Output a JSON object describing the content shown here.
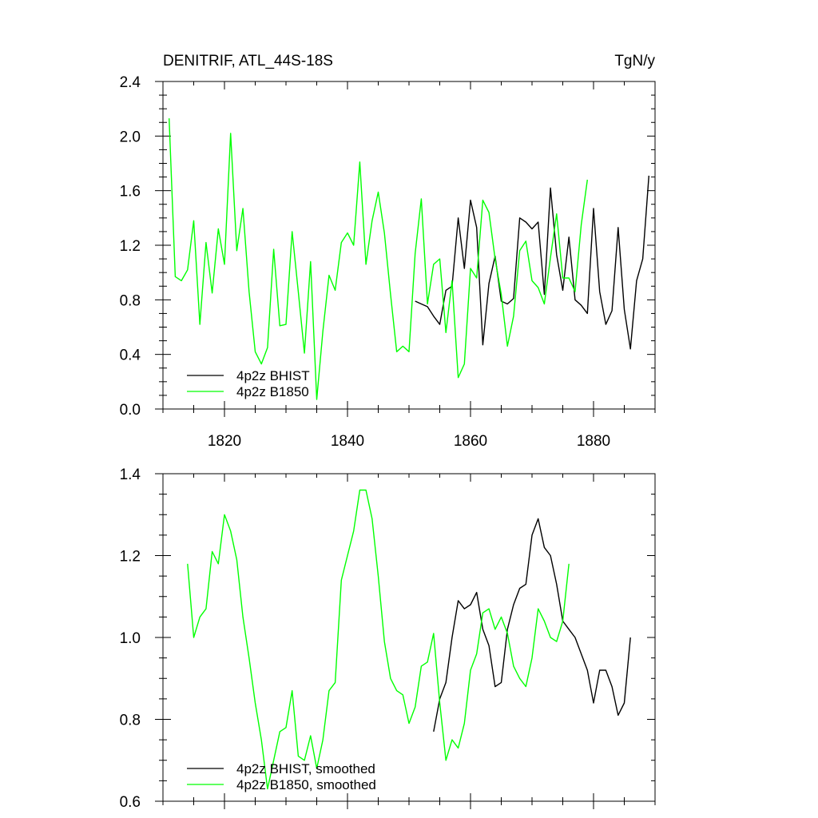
{
  "chart_data": [
    {
      "type": "line",
      "title": "DENITRIF, ATL_44S-18S",
      "units": "TgN/y",
      "xlim": [
        1810,
        1890
      ],
      "ylim": [
        0.0,
        2.4
      ],
      "xticks": [
        1820,
        1840,
        1860,
        1880
      ],
      "yticks": [
        0.0,
        0.4,
        0.8,
        1.2,
        1.6,
        2.0,
        2.4
      ],
      "ytick_labels": [
        "0.0",
        "0.4",
        "0.8",
        "1.2",
        "1.6",
        "2.0",
        "2.4"
      ],
      "legend_position": "bottom-left",
      "series": [
        {
          "name": "4p2z BHIST",
          "color": "#000000",
          "x": [
            1851,
            1852,
            1853,
            1854,
            1855,
            1856,
            1857,
            1858,
            1859,
            1860,
            1861,
            1862,
            1863,
            1864,
            1865,
            1866,
            1867,
            1868,
            1869,
            1870,
            1871,
            1872,
            1873,
            1874,
            1875,
            1876,
            1877,
            1878,
            1879,
            1880,
            1881,
            1882,
            1883,
            1884,
            1885,
            1886,
            1887,
            1888,
            1889
          ],
          "values": [
            0.79,
            0.77,
            0.75,
            0.68,
            0.62,
            0.87,
            0.9,
            1.4,
            1.03,
            1.53,
            1.33,
            0.47,
            0.92,
            1.12,
            0.79,
            0.77,
            0.81,
            1.4,
            1.37,
            1.32,
            1.37,
            0.84,
            1.62,
            1.13,
            0.87,
            1.26,
            0.8,
            0.76,
            0.7,
            1.47,
            0.86,
            0.62,
            0.72,
            1.33,
            0.73,
            0.44,
            0.94,
            1.1,
            1.71
          ]
        },
        {
          "name": "4p2z B1850",
          "color": "#00ff00",
          "x": [
            1811,
            1812,
            1813,
            1814,
            1815,
            1816,
            1817,
            1818,
            1819,
            1820,
            1821,
            1822,
            1823,
            1824,
            1825,
            1826,
            1827,
            1828,
            1829,
            1830,
            1831,
            1832,
            1833,
            1834,
            1835,
            1836,
            1837,
            1838,
            1839,
            1840,
            1841,
            1842,
            1843,
            1844,
            1845,
            1846,
            1847,
            1848,
            1849,
            1850,
            1851,
            1852,
            1853,
            1854,
            1855,
            1856,
            1857,
            1858,
            1859,
            1860,
            1861,
            1862,
            1863,
            1864,
            1865,
            1866,
            1867,
            1868,
            1869,
            1870,
            1871,
            1872,
            1873,
            1874,
            1875,
            1876,
            1877,
            1878,
            1879
          ],
          "values": [
            2.13,
            0.97,
            0.94,
            1.02,
            1.38,
            0.62,
            1.22,
            0.85,
            1.32,
            1.06,
            2.02,
            1.16,
            1.47,
            0.86,
            0.42,
            0.33,
            0.45,
            1.17,
            0.61,
            0.62,
            1.3,
            0.86,
            0.41,
            1.08,
            0.07,
            0.57,
            0.98,
            0.87,
            1.22,
            1.29,
            1.2,
            1.81,
            1.06,
            1.38,
            1.59,
            1.29,
            0.84,
            0.42,
            0.46,
            0.42,
            1.14,
            1.54,
            0.77,
            1.06,
            1.1,
            0.56,
            0.94,
            0.23,
            0.33,
            1.03,
            0.96,
            1.53,
            1.44,
            1.1,
            0.84,
            0.46,
            0.68,
            1.16,
            1.23,
            0.94,
            0.89,
            0.77,
            1.11,
            1.43,
            0.96,
            0.96,
            0.86,
            1.35,
            1.68
          ]
        }
      ]
    },
    {
      "type": "line",
      "title": "",
      "xlim": [
        1810,
        1890
      ],
      "ylim": [
        0.6,
        1.4
      ],
      "xticks": [
        1820,
        1840,
        1860,
        1880
      ],
      "yticks": [
        0.6,
        0.8,
        1.0,
        1.2,
        1.4
      ],
      "ytick_labels": [
        "0.6",
        "0.8",
        "1.0",
        "1.2",
        "1.4"
      ],
      "legend_position": "bottom-left",
      "series": [
        {
          "name": "4p2z BHIST, smoothed",
          "color": "#000000",
          "x": [
            1854,
            1855,
            1856,
            1857,
            1858,
            1859,
            1860,
            1861,
            1862,
            1863,
            1864,
            1865,
            1866,
            1867,
            1868,
            1869,
            1870,
            1871,
            1872,
            1873,
            1874,
            1875,
            1876,
            1877,
            1878,
            1879,
            1880,
            1881,
            1882,
            1883,
            1884,
            1885,
            1886
          ],
          "values": [
            0.77,
            0.85,
            0.89,
            1.0,
            1.09,
            1.07,
            1.08,
            1.11,
            1.02,
            0.98,
            0.88,
            0.89,
            1.02,
            1.08,
            1.12,
            1.13,
            1.25,
            1.29,
            1.22,
            1.2,
            1.13,
            1.04,
            1.02,
            1.0,
            0.96,
            0.92,
            0.84,
            0.92,
            0.92,
            0.88,
            0.81,
            0.84,
            1.0
          ]
        },
        {
          "name": "4p2z B1850, smoothed",
          "color": "#00ff00",
          "x": [
            1814,
            1815,
            1816,
            1817,
            1818,
            1819,
            1820,
            1821,
            1822,
            1823,
            1824,
            1825,
            1826,
            1827,
            1828,
            1829,
            1830,
            1831,
            1832,
            1833,
            1834,
            1835,
            1836,
            1837,
            1838,
            1839,
            1840,
            1841,
            1842,
            1843,
            1844,
            1845,
            1846,
            1847,
            1848,
            1849,
            1850,
            1851,
            1852,
            1853,
            1854,
            1855,
            1856,
            1857,
            1858,
            1859,
            1860,
            1861,
            1862,
            1863,
            1864,
            1865,
            1866,
            1867,
            1868,
            1869,
            1870,
            1871,
            1872,
            1873,
            1874,
            1875,
            1876
          ],
          "values": [
            1.18,
            1.0,
            1.05,
            1.07,
            1.21,
            1.18,
            1.3,
            1.26,
            1.19,
            1.05,
            0.95,
            0.84,
            0.75,
            0.63,
            0.7,
            0.77,
            0.78,
            0.87,
            0.71,
            0.7,
            0.76,
            0.68,
            0.75,
            0.87,
            0.89,
            1.14,
            1.2,
            1.26,
            1.36,
            1.36,
            1.29,
            1.15,
            0.99,
            0.9,
            0.87,
            0.86,
            0.79,
            0.83,
            0.93,
            0.94,
            1.01,
            0.84,
            0.7,
            0.75,
            0.73,
            0.79,
            0.92,
            0.96,
            1.06,
            1.07,
            1.02,
            1.05,
            1.01,
            0.93,
            0.9,
            0.88,
            0.95,
            1.07,
            1.04,
            1.0,
            0.99,
            1.04,
            1.18
          ]
        }
      ]
    }
  ]
}
